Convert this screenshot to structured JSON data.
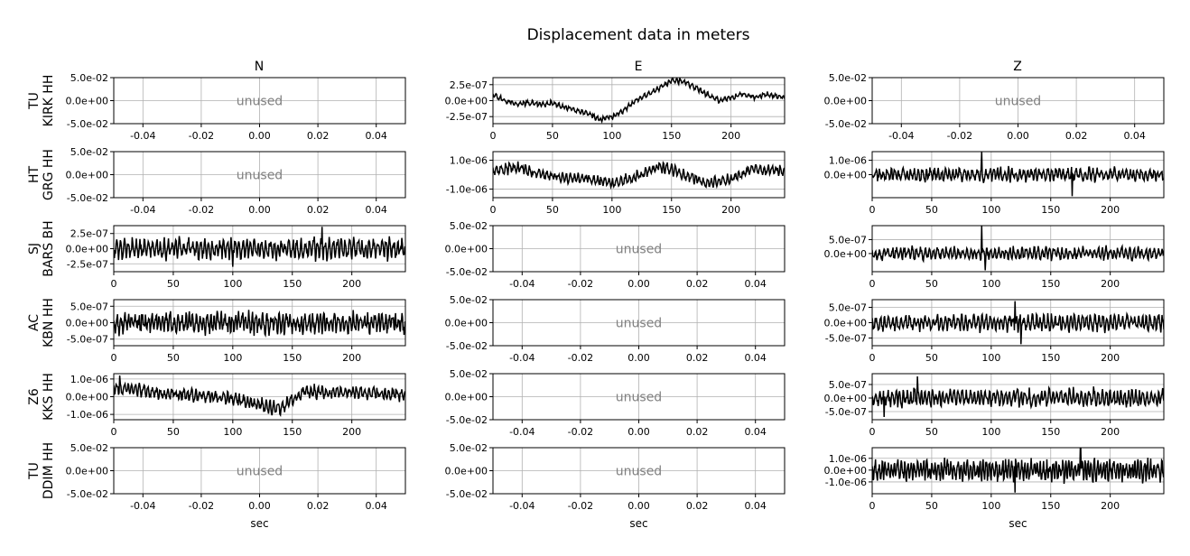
{
  "title": "Displacement data in meters",
  "unused_label": "unused",
  "columns": [
    "N",
    "E",
    "Z"
  ],
  "rows": [
    {
      "network": "TU",
      "station": "KIRK HH"
    },
    {
      "network": "HT",
      "station": "GRG HH"
    },
    {
      "network": "SJ",
      "station": "BARS BH"
    },
    {
      "network": "AC",
      "station": "KBN HH"
    },
    {
      "network": "Z6",
      "station": "KKS HH"
    },
    {
      "network": "TU",
      "station": "DDIM HH"
    }
  ],
  "xlabel": "sec",
  "colors": {
    "trace": "#000000",
    "unused_text": "#808080",
    "grid": "#b0b0b0"
  },
  "chart_data": [
    {
      "type": "line",
      "row": 0,
      "col": 0,
      "unused": true,
      "grid": true,
      "xlim": [
        -0.05,
        0.05
      ],
      "xticks": [
        "-0.04",
        "-0.02",
        "0.00",
        "0.02",
        "0.04"
      ],
      "xtick_values": [
        -0.04,
        -0.02,
        0,
        0.02,
        0.04
      ],
      "ylim": [
        -0.05,
        0.05
      ],
      "yticks": [
        "5.0e-02",
        "0.0e+00",
        "-5.0e-02"
      ],
      "ytick_values": [
        0.05,
        0,
        -0.05
      ]
    },
    {
      "type": "line",
      "row": 0,
      "col": 1,
      "unused": false,
      "grid": true,
      "xlim": [
        0,
        245
      ],
      "xticks": [
        "0",
        "50",
        "100",
        "150",
        "200"
      ],
      "xtick_values": [
        0,
        50,
        100,
        150,
        200
      ],
      "ylim": [
        -3.6e-07,
        3.6e-07
      ],
      "yticks": [
        "2.5e-07",
        "0.0e+00",
        "-2.5e-07"
      ],
      "ytick_values": [
        2.5e-07,
        0,
        -2.5e-07
      ],
      "series": [
        {
          "x": [
            0,
            10,
            20,
            30,
            40,
            50,
            60,
            70,
            80,
            90,
            100,
            110,
            120,
            130,
            140,
            150,
            160,
            170,
            180,
            190,
            200,
            210,
            220,
            230,
            245
          ],
          "y": [
            1e-07,
            0.0,
            -5e-08,
            -3e-08,
            -6e-08,
            -4e-08,
            -1e-07,
            -1.5e-07,
            -2e-07,
            -3e-07,
            -2.5e-07,
            -1.5e-07,
            0.0,
            1e-07,
            2e-07,
            3.2e-07,
            3e-07,
            2e-07,
            1e-07,
            0.0,
            5e-08,
            1e-07,
            5e-08,
            1e-07,
            5e-08
          ],
          "noise": 4e-08,
          "seed": 11
        }
      ]
    },
    {
      "type": "line",
      "row": 0,
      "col": 2,
      "unused": true,
      "grid": true,
      "xlim": [
        -0.05,
        0.05
      ],
      "xticks": [
        "-0.04",
        "-0.02",
        "0.00",
        "0.02",
        "0.04"
      ],
      "xtick_values": [
        -0.04,
        -0.02,
        0,
        0.02,
        0.04
      ],
      "ylim": [
        -0.05,
        0.05
      ],
      "yticks": [
        "5.0e-02",
        "0.0e+00",
        "-5.0e-02"
      ],
      "ytick_values": [
        0.05,
        0,
        -0.05
      ]
    },
    {
      "type": "line",
      "row": 1,
      "col": 0,
      "unused": true,
      "grid": true,
      "xlim": [
        -0.05,
        0.05
      ],
      "xticks": [
        "-0.04",
        "-0.02",
        "0.00",
        "0.02",
        "0.04"
      ],
      "xtick_values": [
        -0.04,
        -0.02,
        0,
        0.02,
        0.04
      ],
      "ylim": [
        -0.05,
        0.05
      ],
      "yticks": [
        "5.0e-02",
        "0.0e+00",
        "-5.0e-02"
      ],
      "ytick_values": [
        0.05,
        0,
        -0.05
      ]
    },
    {
      "type": "line",
      "row": 1,
      "col": 1,
      "unused": false,
      "grid": true,
      "xlim": [
        0,
        245
      ],
      "xticks": [
        "0",
        "50",
        "100",
        "150",
        "200"
      ],
      "xtick_values": [
        0,
        50,
        100,
        150,
        200
      ],
      "ylim": [
        -1.6e-06,
        1.6e-06
      ],
      "yticks": [
        "1.0e-06",
        "-1.0e-06"
      ],
      "ytick_values": [
        1e-06,
        -1e-06
      ],
      "series": [
        {
          "x": [
            0,
            20,
            40,
            60,
            80,
            100,
            120,
            140,
            160,
            180,
            200,
            220,
            245
          ],
          "y": [
            3e-07,
            5e-07,
            0.0,
            -2e-07,
            -3e-07,
            -6e-07,
            -2e-07,
            6e-07,
            0.0,
            -6e-07,
            -3e-07,
            4e-07,
            2e-07
          ],
          "noise": 3.5e-07,
          "seed": 23
        }
      ]
    },
    {
      "type": "line",
      "row": 1,
      "col": 2,
      "unused": false,
      "grid": true,
      "xlim": [
        0,
        245
      ],
      "xticks": [
        "0",
        "50",
        "100",
        "150",
        "200"
      ],
      "xtick_values": [
        0,
        50,
        100,
        150,
        200
      ],
      "ylim": [
        -1.6e-06,
        1.6e-06
      ],
      "yticks": [
        "1.0e-06",
        "0.0e+00"
      ],
      "ytick_values": [
        1e-06,
        0
      ],
      "series": [
        {
          "x": [
            0,
            245
          ],
          "y": [
            0.0,
            0.0
          ],
          "noise": 4.5e-07,
          "seed": 37,
          "spikes": [
            {
              "x": 92,
              "y": 1.6e-06
            },
            {
              "x": 168,
              "y": -1.5e-06
            }
          ]
        }
      ]
    },
    {
      "type": "line",
      "row": 2,
      "col": 0,
      "unused": false,
      "grid": true,
      "xlim": [
        0,
        245
      ],
      "xticks": [
        "0",
        "50",
        "100",
        "150",
        "200"
      ],
      "xtick_values": [
        0,
        50,
        100,
        150,
        200
      ],
      "ylim": [
        -3.8e-07,
        3.8e-07
      ],
      "yticks": [
        "2.5e-07",
        "0.0e+00",
        "-2.5e-07"
      ],
      "ytick_values": [
        2.5e-07,
        0,
        -2.5e-07
      ],
      "series": [
        {
          "x": [
            0,
            245
          ],
          "y": [
            0.0,
            0.0
          ],
          "noise": 1.6e-07,
          "seed": 41,
          "spikes": [
            {
              "x": 175,
              "y": 3.6e-07
            },
            {
              "x": 100,
              "y": -3e-07
            }
          ]
        }
      ]
    },
    {
      "type": "line",
      "row": 2,
      "col": 1,
      "unused": true,
      "grid": true,
      "xlim": [
        -0.05,
        0.05
      ],
      "xticks": [
        "-0.04",
        "-0.02",
        "0.00",
        "0.02",
        "0.04"
      ],
      "xtick_values": [
        -0.04,
        -0.02,
        0,
        0.02,
        0.04
      ],
      "ylim": [
        -0.05,
        0.05
      ],
      "yticks": [
        "5.0e-02",
        "0.0e+00",
        "-5.0e-02"
      ],
      "ytick_values": [
        0.05,
        0,
        -0.05
      ]
    },
    {
      "type": "line",
      "row": 2,
      "col": 2,
      "unused": false,
      "grid": true,
      "xlim": [
        0,
        245
      ],
      "xticks": [
        "0",
        "50",
        "100",
        "150",
        "200"
      ],
      "xtick_values": [
        0,
        50,
        100,
        150,
        200
      ],
      "ylim": [
        -6.5e-07,
        1e-06
      ],
      "yticks": [
        "5.0e-07",
        "0.0e+00"
      ],
      "ytick_values": [
        5e-07,
        0
      ],
      "series": [
        {
          "x": [
            0,
            245
          ],
          "y": [
            0.0,
            0.0
          ],
          "noise": 2.2e-07,
          "seed": 53,
          "spikes": [
            {
              "x": 92,
              "y": 1e-06
            },
            {
              "x": 95,
              "y": -6e-07
            }
          ]
        }
      ]
    },
    {
      "type": "line",
      "row": 3,
      "col": 0,
      "unused": false,
      "grid": true,
      "xlim": [
        0,
        245
      ],
      "xticks": [
        "0",
        "50",
        "100",
        "150",
        "200"
      ],
      "xtick_values": [
        0,
        50,
        100,
        150,
        200
      ],
      "ylim": [
        -7e-07,
        7e-07
      ],
      "yticks": [
        "5.0e-07",
        "0.0e+00",
        "-5.0e-07"
      ],
      "ytick_values": [
        5e-07,
        0,
        -5e-07
      ],
      "series": [
        {
          "x": [
            0,
            245
          ],
          "y": [
            0.0,
            0.0
          ],
          "noise": 3e-07,
          "seed": 67,
          "step": 0.45
        }
      ]
    },
    {
      "type": "line",
      "row": 3,
      "col": 1,
      "unused": true,
      "grid": true,
      "xlim": [
        -0.05,
        0.05
      ],
      "xticks": [
        "-0.04",
        "-0.02",
        "0.00",
        "0.02",
        "0.04"
      ],
      "xtick_values": [
        -0.04,
        -0.02,
        0,
        0.02,
        0.04
      ],
      "ylim": [
        -0.05,
        0.05
      ],
      "yticks": [
        "5.0e-02",
        "0.0e+00",
        "-5.0e-02"
      ],
      "ytick_values": [
        0.05,
        0,
        -0.05
      ]
    },
    {
      "type": "line",
      "row": 3,
      "col": 2,
      "unused": false,
      "grid": true,
      "xlim": [
        0,
        245
      ],
      "xticks": [
        "0",
        "50",
        "100",
        "150",
        "200"
      ],
      "xtick_values": [
        0,
        50,
        100,
        150,
        200
      ],
      "ylim": [
        -7.5e-07,
        7.5e-07
      ],
      "yticks": [
        "5.0e-07",
        "0.0e+00",
        "-5.0e-07"
      ],
      "ytick_values": [
        5e-07,
        0,
        -5e-07
      ],
      "series": [
        {
          "x": [
            0,
            245
          ],
          "y": [
            0.0,
            0.0
          ],
          "noise": 2.6e-07,
          "seed": 79,
          "spikes": [
            {
              "x": 125,
              "y": -7e-07
            },
            {
              "x": 120,
              "y": 7e-07
            }
          ]
        }
      ]
    },
    {
      "type": "line",
      "row": 4,
      "col": 0,
      "unused": false,
      "grid": true,
      "xlim": [
        0,
        245
      ],
      "xticks": [
        "0",
        "50",
        "100",
        "150",
        "200"
      ],
      "xtick_values": [
        0,
        50,
        100,
        150,
        200
      ],
      "ylim": [
        -1.3e-06,
        1.3e-06
      ],
      "yticks": [
        "1.0e-06",
        "0.0e+00",
        "-1.0e-06"
      ],
      "ytick_values": [
        1e-06,
        0,
        -1e-06
      ],
      "series": [
        {
          "x": [
            0,
            20,
            40,
            60,
            80,
            100,
            120,
            140,
            160,
            180,
            200,
            220,
            245
          ],
          "y": [
            5e-07,
            4e-07,
            2e-07,
            1e-07,
            0.0,
            -1e-07,
            -4e-07,
            -7e-07,
            3e-07,
            2e-07,
            3e-07,
            2e-07,
            1e-07
          ],
          "noise": 3.5e-07,
          "seed": 83,
          "spikes": [
            {
              "x": 5,
              "y": 1.2e-06
            }
          ]
        }
      ]
    },
    {
      "type": "line",
      "row": 4,
      "col": 1,
      "unused": true,
      "grid": true,
      "xlim": [
        -0.05,
        0.05
      ],
      "xticks": [
        "-0.04",
        "-0.02",
        "0.00",
        "0.02",
        "0.04"
      ],
      "xtick_values": [
        -0.04,
        -0.02,
        0,
        0.02,
        0.04
      ],
      "ylim": [
        -0.05,
        0.05
      ],
      "yticks": [
        "5.0e-02",
        "0.0e+00",
        "-5.0e-02"
      ],
      "ytick_values": [
        0.05,
        0,
        -0.05
      ]
    },
    {
      "type": "line",
      "row": 4,
      "col": 2,
      "unused": false,
      "grid": true,
      "xlim": [
        0,
        245
      ],
      "xticks": [
        "0",
        "50",
        "100",
        "150",
        "200"
      ],
      "xtick_values": [
        0,
        50,
        100,
        150,
        200
      ],
      "ylim": [
        -8e-07,
        9e-07
      ],
      "yticks": [
        "5.0e-07",
        "0.0e+00",
        "-5.0e-07"
      ],
      "ytick_values": [
        5e-07,
        0,
        -5e-07
      ],
      "series": [
        {
          "x": [
            0,
            245
          ],
          "y": [
            0.0,
            0.0
          ],
          "noise": 3e-07,
          "seed": 97,
          "spikes": [
            {
              "x": 38,
              "y": 8e-07
            },
            {
              "x": 10,
              "y": -7e-07
            }
          ]
        }
      ]
    },
    {
      "type": "line",
      "row": 5,
      "col": 0,
      "unused": true,
      "grid": true,
      "xlim": [
        -0.05,
        0.05
      ],
      "xticks": [
        "-0.04",
        "-0.02",
        "0.00",
        "0.02",
        "0.04"
      ],
      "xtick_values": [
        -0.04,
        -0.02,
        0,
        0.02,
        0.04
      ],
      "ylim": [
        -0.05,
        0.05
      ],
      "yticks": [
        "5.0e-02",
        "0.0e+00",
        "-5.0e-02"
      ],
      "ytick_values": [
        0.05,
        0,
        -0.05
      ],
      "xlabel": "sec"
    },
    {
      "type": "line",
      "row": 5,
      "col": 1,
      "unused": true,
      "grid": true,
      "xlim": [
        -0.05,
        0.05
      ],
      "xticks": [
        "-0.04",
        "-0.02",
        "0.00",
        "0.02",
        "0.04"
      ],
      "xtick_values": [
        -0.04,
        -0.02,
        0,
        0.02,
        0.04
      ],
      "ylim": [
        -0.05,
        0.05
      ],
      "yticks": [
        "5.0e-02",
        "0.0e+00",
        "-5.0e-02"
      ],
      "ytick_values": [
        0.05,
        0,
        -0.05
      ],
      "xlabel": "sec"
    },
    {
      "type": "line",
      "row": 5,
      "col": 2,
      "unused": false,
      "grid": true,
      "xlim": [
        0,
        245
      ],
      "xticks": [
        "0",
        "50",
        "100",
        "150",
        "200"
      ],
      "xtick_values": [
        0,
        50,
        100,
        150,
        200
      ],
      "ylim": [
        -2e-06,
        1.9e-06
      ],
      "yticks": [
        "1.0e-06",
        "0.0e+00",
        "-1.0e-06"
      ],
      "ytick_values": [
        1e-06,
        0,
        -1e-06
      ],
      "series": [
        {
          "x": [
            0,
            245
          ],
          "y": [
            0.0,
            0.0
          ],
          "noise": 8.5e-07,
          "seed": 101,
          "step": 0.4,
          "spikes": [
            {
              "x": 175,
              "y": 1.9e-06
            },
            {
              "x": 120,
              "y": -1.9e-06
            }
          ]
        }
      ],
      "xlabel": "sec"
    }
  ]
}
